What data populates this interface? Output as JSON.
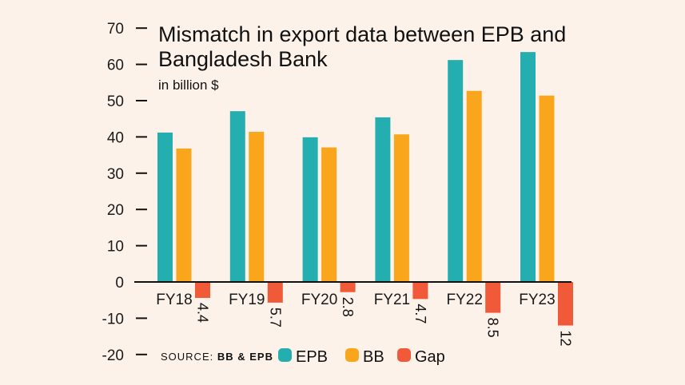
{
  "chart_data": {
    "type": "bar",
    "title": "Mismatch in export data between EPB and Bangladesh Bank",
    "subtitle": "in billion $",
    "source_label": "SOURCE:",
    "source_value": "BB & EPB",
    "categories": [
      "FY18",
      "FY19",
      "FY20",
      "FY21",
      "FY22",
      "FY23"
    ],
    "series": [
      {
        "name": "EPB",
        "color": "#25aeb0",
        "values": [
          41.2,
          47.1,
          39.9,
          45.4,
          61.2,
          63.4
        ]
      },
      {
        "name": "BB",
        "color": "#f9a61d",
        "values": [
          36.8,
          41.4,
          37.1,
          40.7,
          52.7,
          51.4
        ]
      },
      {
        "name": "Gap",
        "color": "#f05a38",
        "values": [
          -4.4,
          -5.7,
          -2.8,
          -4.7,
          -8.5,
          -12
        ],
        "labels": [
          "4.4",
          "5.7",
          "2.8",
          "4.7",
          "8.5",
          "12"
        ]
      }
    ],
    "ylim": [
      -20,
      70
    ],
    "yticks": [
      "70",
      "60",
      "50",
      "40",
      "30",
      "20",
      "10",
      "0",
      "-10",
      "-20"
    ],
    "ytick_values": [
      70,
      60,
      50,
      40,
      30,
      20,
      10,
      0,
      -10,
      -20
    ],
    "grid": false,
    "legend_placement": "bottom"
  }
}
